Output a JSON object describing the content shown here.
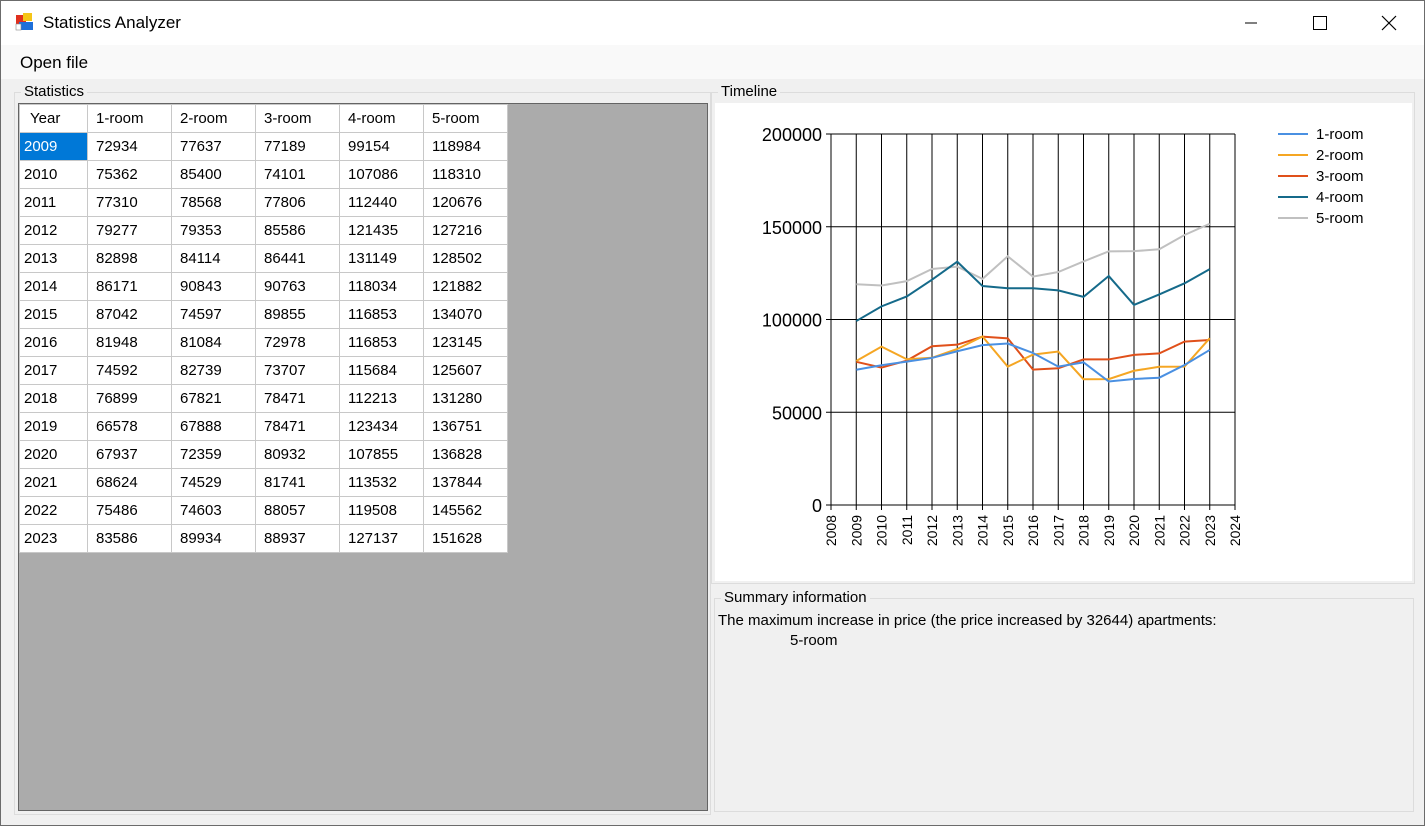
{
  "window": {
    "title": "Statistics Analyzer"
  },
  "menu": {
    "open_file": "Open file"
  },
  "statistics": {
    "group_label": "Statistics",
    "columns": [
      "Year",
      "1-room",
      "2-room",
      "3-room",
      "4-room",
      "5-room"
    ],
    "rows": [
      [
        "2009",
        "72934",
        "77637",
        "77189",
        "99154",
        "118984"
      ],
      [
        "2010",
        "75362",
        "85400",
        "74101",
        "107086",
        "118310"
      ],
      [
        "2011",
        "77310",
        "78568",
        "77806",
        "112440",
        "120676"
      ],
      [
        "2012",
        "79277",
        "79353",
        "85586",
        "121435",
        "127216"
      ],
      [
        "2013",
        "82898",
        "84114",
        "86441",
        "131149",
        "128502"
      ],
      [
        "2014",
        "86171",
        "90843",
        "90763",
        "118034",
        "121882"
      ],
      [
        "2015",
        "87042",
        "74597",
        "89855",
        "116853",
        "134070"
      ],
      [
        "2016",
        "81948",
        "81084",
        "72978",
        "116853",
        "123145"
      ],
      [
        "2017",
        "74592",
        "82739",
        "73707",
        "115684",
        "125607"
      ],
      [
        "2018",
        "76899",
        "67821",
        "78471",
        "112213",
        "131280"
      ],
      [
        "2019",
        "66578",
        "67888",
        "78471",
        "123434",
        "136751"
      ],
      [
        "2020",
        "67937",
        "72359",
        "80932",
        "107855",
        "136828"
      ],
      [
        "2021",
        "68624",
        "74529",
        "81741",
        "113532",
        "137844"
      ],
      [
        "2022",
        "75486",
        "74603",
        "88057",
        "119508",
        "145562"
      ],
      [
        "2023",
        "83586",
        "89934",
        "88937",
        "127137",
        "151628"
      ]
    ]
  },
  "timeline": {
    "group_label": "Timeline"
  },
  "chart_data": {
    "type": "line",
    "title": "",
    "xlabel": "",
    "ylabel": "",
    "x": [
      2009,
      2010,
      2011,
      2012,
      2013,
      2014,
      2015,
      2016,
      2017,
      2018,
      2019,
      2020,
      2021,
      2022,
      2023
    ],
    "xlim": [
      2008,
      2024
    ],
    "x_ticks": [
      "2008",
      "2009",
      "2010",
      "2011",
      "2012",
      "2013",
      "2014",
      "2015",
      "2016",
      "2017",
      "2018",
      "2019",
      "2020",
      "2021",
      "2022",
      "2023",
      "2024"
    ],
    "ylim": [
      0,
      200000
    ],
    "y_ticks": [
      "0",
      "50000",
      "100000",
      "150000",
      "200000"
    ],
    "grid": true,
    "legend_position": "top-right",
    "series": [
      {
        "name": "1-room",
        "color": "#4a90e2",
        "values": [
          72934,
          75362,
          77310,
          79277,
          82898,
          86171,
          87042,
          81948,
          74592,
          76899,
          66578,
          67937,
          68624,
          75486,
          83586
        ]
      },
      {
        "name": "2-room",
        "color": "#f5a623",
        "values": [
          77637,
          85400,
          78568,
          79353,
          84114,
          90843,
          74597,
          81084,
          82739,
          67821,
          67888,
          72359,
          74529,
          74603,
          89934
        ]
      },
      {
        "name": "3-room",
        "color": "#e0501a",
        "values": [
          77189,
          74101,
          77806,
          85586,
          86441,
          90763,
          89855,
          72978,
          73707,
          78471,
          78471,
          80932,
          81741,
          88057,
          88937
        ]
      },
      {
        "name": "4-room",
        "color": "#156a8a",
        "values": [
          99154,
          107086,
          112440,
          121435,
          131149,
          118034,
          116853,
          116853,
          115684,
          112213,
          123434,
          107855,
          113532,
          119508,
          127137
        ]
      },
      {
        "name": "5-room",
        "color": "#c0c0c0",
        "values": [
          118984,
          118310,
          120676,
          127216,
          128502,
          121882,
          134070,
          123145,
          125607,
          131280,
          136751,
          136828,
          137844,
          145562,
          151628
        ]
      }
    ]
  },
  "summary": {
    "group_label": "Summary information",
    "line1": "The maximum increase in price (the price increased by 32644) apartments:",
    "line2": "5-room"
  }
}
